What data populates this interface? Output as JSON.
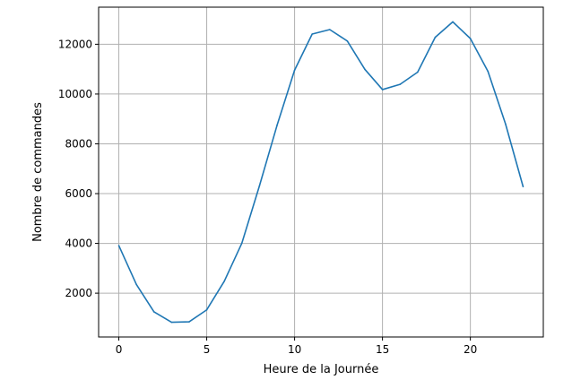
{
  "chart_data": {
    "type": "line",
    "xlabel": "Heure de la Journée",
    "ylabel": "Nombre de commandes",
    "x": [
      0,
      1,
      2,
      3,
      4,
      5,
      6,
      7,
      8,
      9,
      10,
      11,
      12,
      13,
      14,
      15,
      16,
      17,
      18,
      19,
      20,
      21,
      22,
      23
    ],
    "series": [
      {
        "color": "#1f77b4",
        "values": [
          3910,
          2350,
          1250,
          830,
          850,
          1330,
          2480,
          4010,
          6310,
          8740,
          10960,
          12410,
          12590,
          12130,
          10990,
          10180,
          10390,
          10880,
          12280,
          12900,
          12230,
          10910,
          8800,
          6280
        ]
      }
    ],
    "xlim": [
      -1.15,
      24.15
    ],
    "ylim": [
      240,
      13490
    ],
    "xticks": [
      0,
      5,
      10,
      15,
      20
    ],
    "yticks": [
      2000,
      4000,
      6000,
      8000,
      10000,
      12000
    ],
    "grid": true,
    "colors": {
      "grid": "#b0b0b0",
      "axes": "#000000"
    }
  }
}
